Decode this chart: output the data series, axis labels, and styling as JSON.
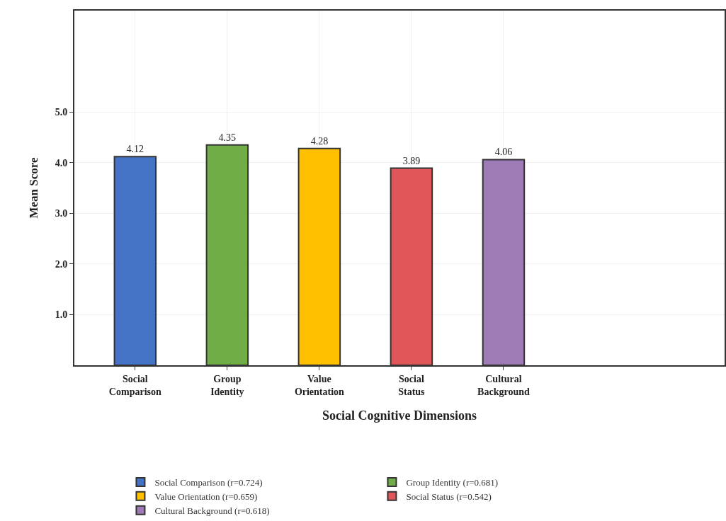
{
  "chart_data": {
    "type": "bar",
    "xlabel": "Social Cognitive Dimensions",
    "ylabel": "Mean Score",
    "categories": [
      "Social Comparison",
      "Group Identity",
      "Value Orientation",
      "Social Status",
      "Cultural Background"
    ],
    "series": [
      {
        "name": "Social Comparison (r=0.724)",
        "color": "#4472c4",
        "values": [
          4.12,
          null,
          null,
          null,
          null
        ]
      },
      {
        "name": "Group Identity (r=0.681)",
        "color": "#70ad47",
        "values": [
          null,
          4.35,
          null,
          null,
          null
        ]
      },
      {
        "name": "Value Orientation (r=0.659)",
        "color": "#ffc000",
        "values": [
          null,
          null,
          4.28,
          null,
          null
        ]
      },
      {
        "name": "Social Status (r=0.542)",
        "color": "#e15759",
        "values": [
          null,
          null,
          null,
          3.89,
          null
        ]
      },
      {
        "name": "Cultural Background (r=0.618)",
        "color": "#9e7bb5",
        "values": [
          null,
          null,
          null,
          null,
          4.06
        ]
      }
    ],
    "ylim": [
      0,
      7
    ],
    "yticks": [
      {
        "value": 1,
        "label": "1.0"
      },
      {
        "value": 2,
        "label": "2.0"
      },
      {
        "value": 3,
        "label": "3.0"
      },
      {
        "value": 4,
        "label": "4.0"
      },
      {
        "value": 5,
        "label": "5.0"
      }
    ],
    "grid": true,
    "legend": "bottom",
    "data_labels": true
  }
}
